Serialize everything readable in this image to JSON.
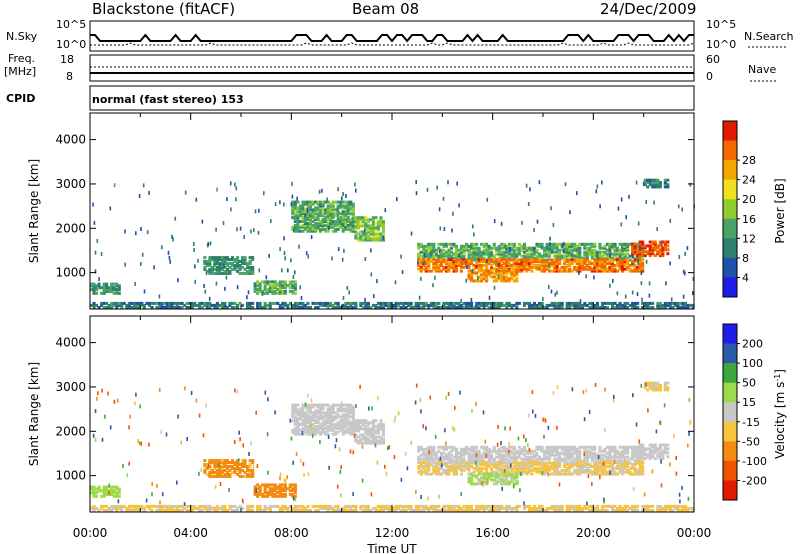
{
  "header": {
    "station": "Blackstone (fitACF)",
    "beam": "Beam 08",
    "date": "24/Dec/2009"
  },
  "summary_panel": {
    "nsky_label": "N.Sky",
    "nsearch_label": "N.Search",
    "noise_ticks": [
      "10^5",
      "10^0"
    ],
    "freq_label": "Freq.",
    "freq_unit": "[MHz]",
    "freq_ticks": [
      "18",
      "8"
    ],
    "nave_label": "Nave",
    "nave_ticks": [
      "60",
      "0"
    ],
    "cpid_label": "CPID",
    "cpid_value": "normal (fast stereo) 153"
  },
  "x_axis": {
    "label": "Time UT",
    "ticks": [
      "00:00",
      "04:00",
      "08:00",
      "12:00",
      "16:00",
      "20:00",
      "00:00"
    ]
  },
  "colors": {
    "power": [
      "#1e1ee8",
      "#2050a8",
      "#2f7f6f",
      "#4aa46a",
      "#8fcc2e",
      "#f2e01e",
      "#f4a500",
      "#f26a00",
      "#e21b00"
    ],
    "velocity": [
      "#e21b00",
      "#ef5200",
      "#f58a12",
      "#f5c440",
      "#c8c8c8",
      "#9cdc4a",
      "#3ea63e",
      "#2a5aa8",
      "#1e1ee8"
    ]
  },
  "chart_data": [
    {
      "type": "heatmap",
      "panel": "power",
      "ylabel": "Slant Range [km]",
      "ylim": [
        180,
        4600
      ],
      "xlim": [
        0,
        24
      ],
      "y_ticks": [
        1000,
        2000,
        3000,
        4000
      ],
      "colorbar": {
        "label": "Power [dB]",
        "ticks": [
          "4",
          "8",
          "12",
          "16",
          "20",
          "24",
          "28"
        ]
      },
      "regions": [
        {
          "t": [
            0,
            1.2
          ],
          "r": [
            500,
            750
          ],
          "v": 10
        },
        {
          "t": [
            4.5,
            6.5
          ],
          "r": [
            950,
            1350
          ],
          "v": 10
        },
        {
          "t": [
            6.5,
            8.2
          ],
          "r": [
            500,
            800
          ],
          "v": 12
        },
        {
          "t": [
            8.0,
            10.5
          ],
          "r": [
            1900,
            2600
          ],
          "v": 12
        },
        {
          "t": [
            10.5,
            11.7
          ],
          "r": [
            1700,
            2250
          ],
          "v": 14
        },
        {
          "t": [
            13.0,
            22.0
          ],
          "r": [
            1250,
            1650
          ],
          "v": 12
        },
        {
          "t": [
            13.0,
            22.0
          ],
          "r": [
            1000,
            1300
          ],
          "v": 24
        },
        {
          "t": [
            15.0,
            17.0
          ],
          "r": [
            780,
            1050
          ],
          "v": 22
        },
        {
          "t": [
            21.5,
            23.0
          ],
          "r": [
            1350,
            1700
          ],
          "v": 26
        },
        {
          "t": [
            22.0,
            23.0
          ],
          "r": [
            2900,
            3100
          ],
          "v": 8
        },
        {
          "t": [
            0,
            24
          ],
          "r": [
            180,
            320
          ],
          "v": 8
        }
      ]
    },
    {
      "type": "heatmap",
      "panel": "velocity",
      "ylabel": "Slant Range [km]",
      "ylim": [
        180,
        4600
      ],
      "xlim": [
        0,
        24
      ],
      "y_ticks": [
        1000,
        2000,
        3000,
        4000
      ],
      "colorbar": {
        "label": "Velocity [m s^-1]",
        "ticks": [
          "200",
          "100",
          "50",
          "15",
          "-15",
          "-50",
          "-100",
          "-200"
        ]
      },
      "regions": [
        {
          "t": [
            0,
            1.2
          ],
          "r": [
            500,
            750
          ],
          "v": 30
        },
        {
          "t": [
            4.5,
            6.5
          ],
          "r": [
            950,
            1350
          ],
          "v": -60
        },
        {
          "t": [
            6.5,
            8.2
          ],
          "r": [
            500,
            800
          ],
          "v": -80
        },
        {
          "t": [
            8.0,
            10.5
          ],
          "r": [
            1900,
            2600
          ],
          "v": 0
        },
        {
          "t": [
            10.5,
            11.7
          ],
          "r": [
            1700,
            2250
          ],
          "v": 0
        },
        {
          "t": [
            13.0,
            22.0
          ],
          "r": [
            1250,
            1650
          ],
          "v": 0
        },
        {
          "t": [
            13.0,
            22.0
          ],
          "r": [
            1000,
            1300
          ],
          "v": -20
        },
        {
          "t": [
            15.0,
            17.0
          ],
          "r": [
            780,
            1050
          ],
          "v": 20
        },
        {
          "t": [
            21.5,
            23.0
          ],
          "r": [
            1350,
            1700
          ],
          "v": 0
        },
        {
          "t": [
            22.0,
            23.0
          ],
          "r": [
            2900,
            3100
          ],
          "v": -20
        },
        {
          "t": [
            0,
            24
          ],
          "r": [
            180,
            320
          ],
          "v": -20
        }
      ]
    }
  ]
}
